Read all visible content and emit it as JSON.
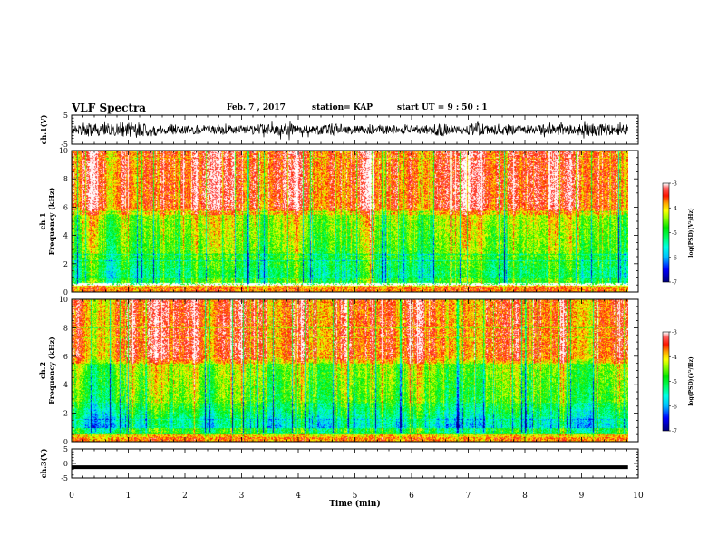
{
  "header": {
    "title": "VLF Spectra",
    "date": "Feb. 7 , 2017",
    "station": "station= KAP",
    "start": "start UT =  9 : 50 : 1"
  },
  "colors": {
    "colormap": [
      "#000080",
      "#0000ff",
      "#00bfff",
      "#00ffff",
      "#00ff80",
      "#00ff00",
      "#80ff00",
      "#ffff00",
      "#ffa500",
      "#ff0000",
      "#ff8080",
      "#ffffff"
    ]
  },
  "chart_data": [
    {
      "type": "line",
      "panel": "ch1-waveform",
      "ylabel": "ch.1(V)",
      "ylim": [
        -5,
        5
      ],
      "yticks": [
        "5",
        "-5"
      ],
      "xlim": [
        0,
        10
      ],
      "note_visible": "dense waveform trace fluctuating roughly between -3 V and +3 V"
    },
    {
      "type": "heatmap",
      "panel": "ch1-spectrogram",
      "ylabel": "ch.1\nFrequency (kHz)",
      "ylim": [
        0,
        10
      ],
      "yticks": [
        "0",
        "2",
        "4",
        "6",
        "8",
        "10"
      ],
      "xlim": [
        0,
        10
      ],
      "colorbar": {
        "label": "log(PSD)(V²/Hz)",
        "range": [
          -7,
          -3
        ],
        "ticks": [
          "-3",
          "-4",
          "-5",
          "-6",
          "-7"
        ]
      }
    },
    {
      "type": "heatmap",
      "panel": "ch2-spectrogram",
      "ylabel": "ch.2\nFrequency (kHz)",
      "ylim": [
        0,
        10
      ],
      "yticks": [
        "0",
        "2",
        "4",
        "6",
        "8",
        "10"
      ],
      "xlim": [
        0,
        10
      ],
      "colorbar": {
        "label": "log(PSD)(V²/Hz)",
        "range": [
          -7,
          -3
        ],
        "ticks": [
          "-3",
          "-4",
          "-5",
          "-6",
          "-7"
        ]
      }
    },
    {
      "type": "line",
      "panel": "ch3-waveform",
      "ylabel": "ch.3(V)",
      "ylim": [
        -5,
        5
      ],
      "yticks": [
        "5",
        "0",
        "-5"
      ],
      "xlim": [
        0,
        10
      ],
      "value": -1.3
    }
  ],
  "xaxis": {
    "label": "Time (min)",
    "ticks": [
      "0",
      "1",
      "2",
      "3",
      "4",
      "5",
      "6",
      "7",
      "8",
      "9",
      "10"
    ],
    "data_end": 9.82
  },
  "labels": {
    "ch1_wave": "ch.1(V)",
    "ch1_spec_a": "ch.1",
    "ch1_spec_b": "Frequency (kHz)",
    "ch2_spec_a": "ch.2",
    "ch2_spec_b": "Frequency (kHz)",
    "ch3_wave": "ch.3(V)",
    "cbar": "log(PSD)(V²/Hz)"
  }
}
